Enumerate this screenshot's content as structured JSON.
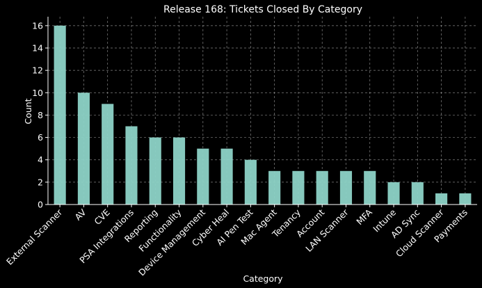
{
  "chart_data": {
    "type": "bar",
    "title": "Release 168: Tickets Closed By Category",
    "xlabel": "Category",
    "ylabel": "Count",
    "categories": [
      "External Scanner",
      "AV",
      "CVE",
      "PSA Integrations",
      "Reporting",
      "Functionality",
      "Device Management",
      "Cyber Heal",
      "AI Pen Test",
      "Mac Agent",
      "Tenancy",
      "Account",
      "LAN Scanner",
      "MFA",
      "Intune",
      "AD Sync",
      "Cloud Scanner",
      "Payments"
    ],
    "values": [
      16,
      10,
      9,
      7,
      6,
      6,
      5,
      5,
      4,
      3,
      3,
      3,
      3,
      3,
      2,
      2,
      1,
      1
    ],
    "ylim": [
      0,
      16.8
    ],
    "yticks": [
      0,
      2,
      4,
      6,
      8,
      10,
      12,
      14,
      16
    ],
    "grid": true,
    "bar_color": "#8dd3c7",
    "background": "#000000"
  }
}
